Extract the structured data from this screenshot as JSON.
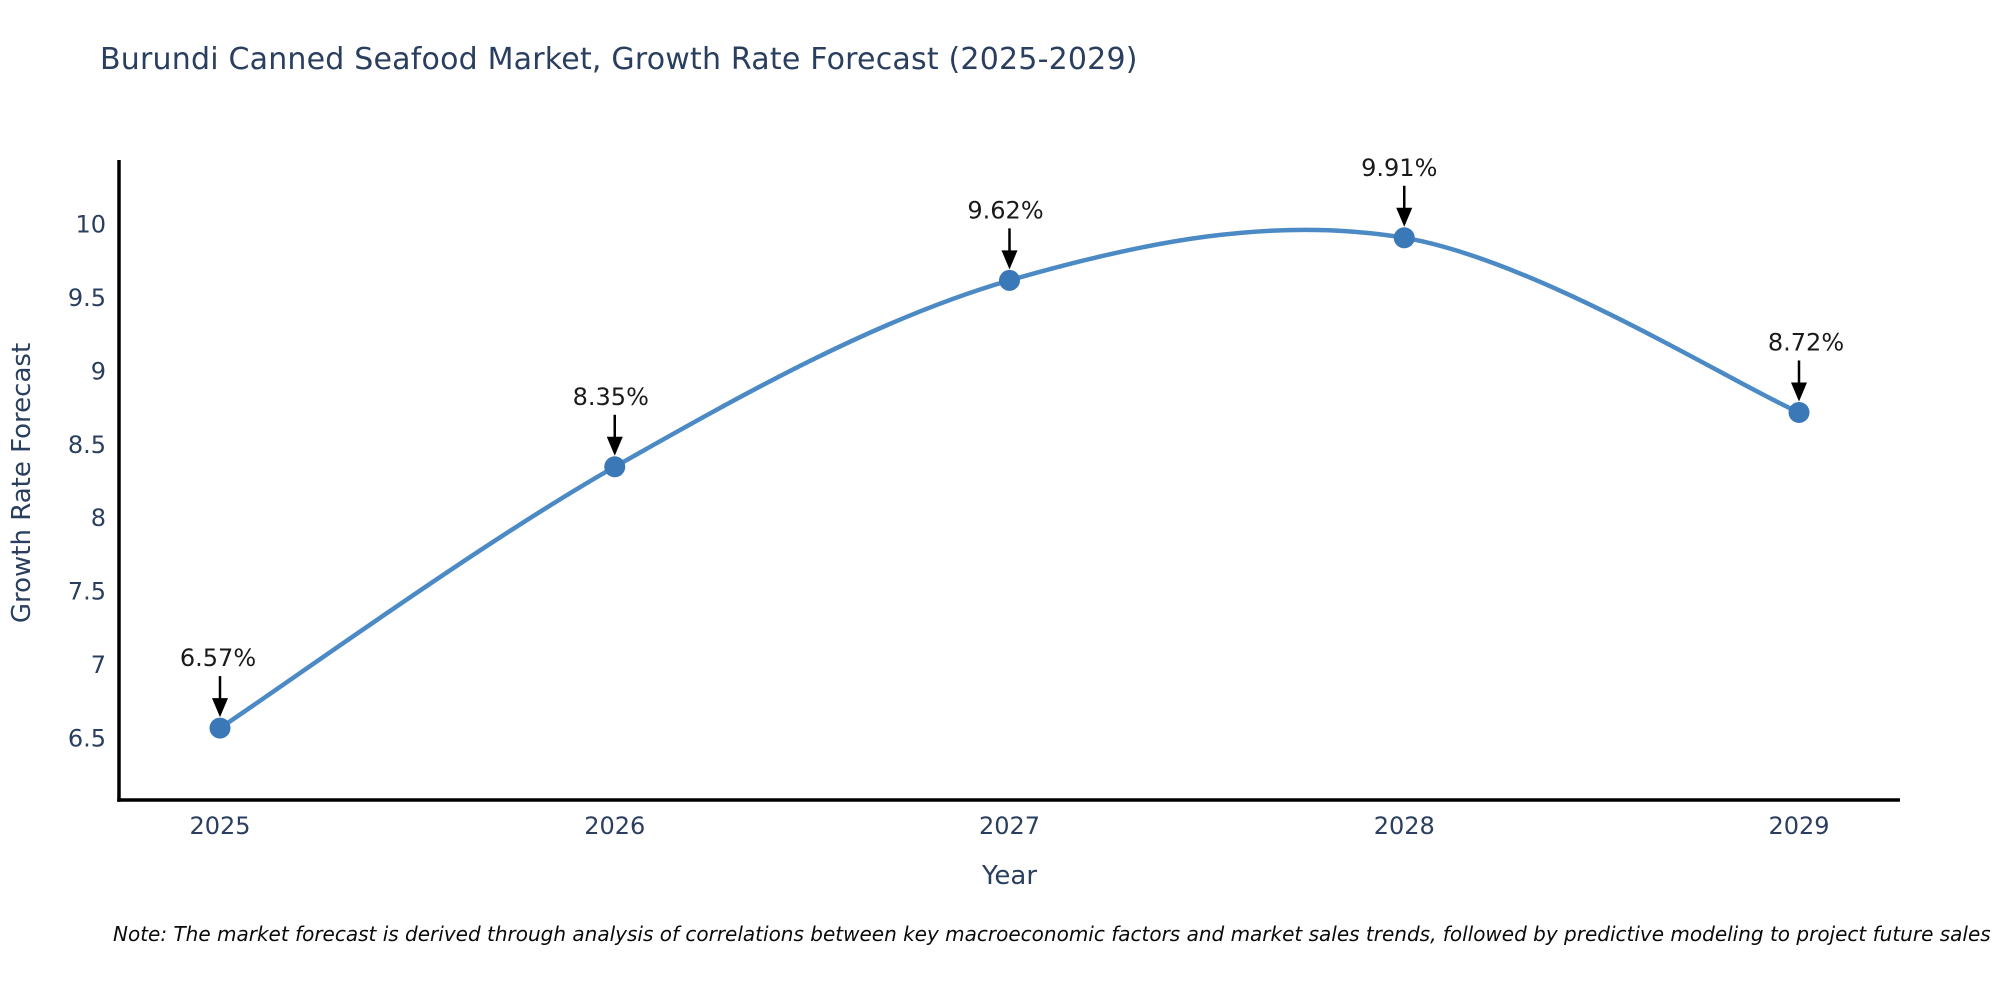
{
  "chart_data": {
    "type": "line",
    "title": "Burundi Canned Seafood Market, Growth Rate Forecast (2025-2029)",
    "xlabel": "Year",
    "ylabel": "Growth Rate Forecast",
    "categories": [
      "2025",
      "2026",
      "2027",
      "2028",
      "2029"
    ],
    "series": [
      {
        "name": "Growth Rate Forecast",
        "values": [
          6.57,
          8.35,
          9.62,
          9.91,
          8.72
        ],
        "point_labels": [
          "6.57%",
          "8.35%",
          "9.62%",
          "9.91%",
          "8.72%"
        ]
      }
    ],
    "y_ticks": [
      "6.5",
      "7",
      "7.5",
      "8",
      "8.5",
      "9",
      "9.5",
      "10"
    ],
    "ylim": [
      6.08,
      10.44
    ],
    "grid": false,
    "legend_position": "none",
    "line_shape": "spline",
    "colors": {
      "line": "#4b8ac4",
      "marker": "#3a78b8",
      "axis": "#000000",
      "tick_label": "#2a3f5f",
      "axis_title": "#2a3f5f",
      "annotation_text": "#1a1a1a",
      "annotation_arrow": "#000000",
      "background": "#ffffff"
    }
  },
  "note": {
    "text": "Note: The market forecast is derived through analysis of correlations between key macroeconomic factors and market sales trends, followed by predictive modeling to project future sales"
  }
}
